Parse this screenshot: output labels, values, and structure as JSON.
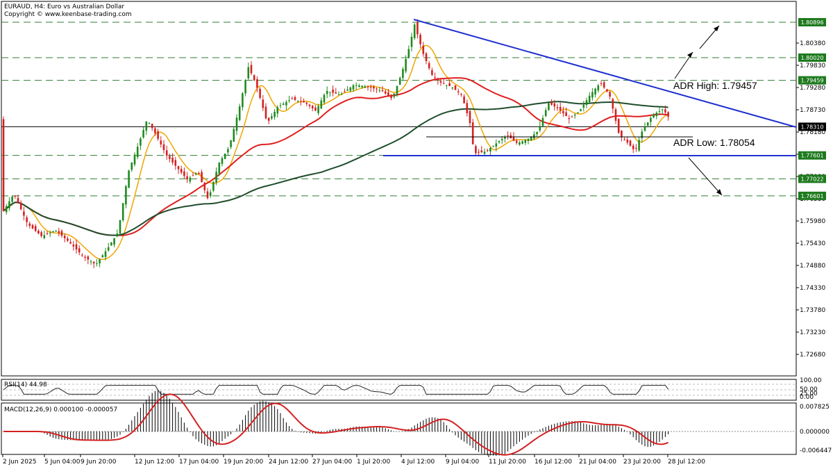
{
  "header": {
    "symbol": "EURAUD, H4:  Euro vs Australian Dollar",
    "copyright": "Copyright © www.keenbase-trading.com"
  },
  "chart_data": {
    "type": "candlestick",
    "price_ylim": [
      1.723,
      1.812
    ],
    "price_ticks": [
      "1.80380",
      "1.79830",
      "1.79280",
      "1.78730",
      "1.78180",
      "1.77630",
      "1.77080",
      "1.76530",
      "1.75980",
      "1.75430",
      "1.74880",
      "1.74330",
      "1.73780",
      "1.73230",
      "1.72680"
    ],
    "x_labels": [
      "2 Jun 2025",
      "5 Jun 04:00",
      "9 Jun 20:00",
      "12 Jun 12:00",
      "17 Jun 04:00",
      "19 Jun 20:00",
      "24 Jun 12:00",
      "27 Jun 04:00",
      "1 Jul 20:00",
      "4 Jul 12:00",
      "9 Jul 04:00",
      "11 Jul 20:00",
      "16 Jul 12:00",
      "21 Jul 04:00",
      "23 Jul 20:00",
      "28 Jul 12:00"
    ],
    "horizontal_levels": [
      {
        "label": "1.80896",
        "value": 1.80896,
        "color": "#2e7d32",
        "style": "dashed"
      },
      {
        "label": "1.80020",
        "value": 1.8002,
        "color": "#2e7d32",
        "style": "dashed"
      },
      {
        "label": "1.79459",
        "value": 1.79459,
        "color": "#2e7d32",
        "style": "dashed"
      },
      {
        "label": "1.78310",
        "value": 1.7831,
        "color": "#000000",
        "style": "solid"
      },
      {
        "label": "1.77601",
        "value": 1.77601,
        "color": "#2e7d32",
        "style": "dashed"
      },
      {
        "label": "1.77022",
        "value": 1.77022,
        "color": "#2e7d32",
        "style": "dashed"
      },
      {
        "label": "1.76601",
        "value": 1.76601,
        "color": "#2e7d32",
        "style": "dashed"
      }
    ],
    "annotations": [
      {
        "text": "ADR High: 1.79457",
        "value": 1.79457
      },
      {
        "text": "ADR Low: 1.78054",
        "value": 1.78054
      }
    ],
    "colors": {
      "bull": "#1e8a1e",
      "bear": "#d42020",
      "ma_fast": "#f0a500",
      "ma_mid": "#e01e1e",
      "ma_slow": "#1e4d2b",
      "trend": "#1f2fd0",
      "grid": "#a0a0a0"
    },
    "rsi": {
      "label": "RSI(14) 44.98",
      "ylim": [
        0,
        100
      ],
      "ticks": [
        "100.00",
        "50.00",
        "25.00",
        "0.00"
      ]
    },
    "macd": {
      "label": "MACD(12,26,9) 0.000100 -0.000057",
      "ylim": [
        -0.00645,
        0.00783
      ],
      "ticks": [
        "0.007825",
        "0.000000",
        "-0.006447"
      ]
    }
  }
}
